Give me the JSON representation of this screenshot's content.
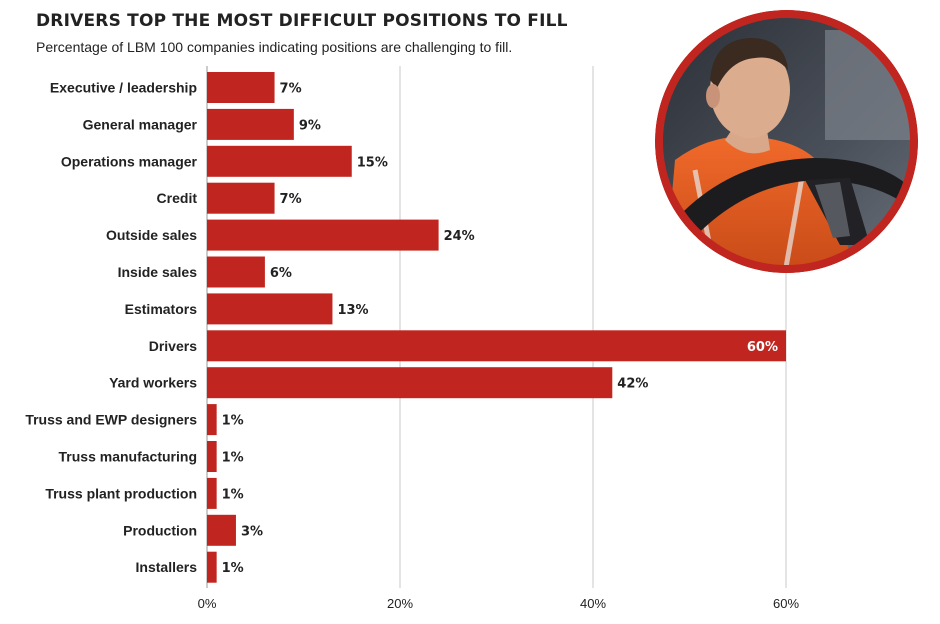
{
  "colors": {
    "accent": "#c0261f",
    "bar": "#c0261f",
    "text": "#222222",
    "grid": "#c8c8c8"
  },
  "header": {
    "title": "DRIVERS TOP THE MOST DIFFICULT POSITIONS TO FILL",
    "subtitle": "Percentage of LBM 100 companies indicating positions are challenging to fill."
  },
  "photo": {
    "icon": "truck-driver-photo-icon"
  },
  "chart_data": {
    "type": "bar",
    "orientation": "horizontal",
    "title": "DRIVERS TOP THE MOST DIFFICULT POSITIONS TO FILL",
    "subtitle": "Percentage of LBM 100 companies indicating positions are challenging to fill.",
    "xlabel": "",
    "ylabel": "",
    "categories": [
      "Executive / leadership",
      "General manager",
      "Operations manager",
      "Credit",
      "Outside sales",
      "Inside sales",
      "Estimators",
      "Drivers",
      "Yard workers",
      "Truss and EWP designers",
      "Truss manufacturing",
      "Truss plant production",
      "Production",
      "Installers"
    ],
    "values": [
      7,
      9,
      15,
      7,
      24,
      6,
      13,
      60,
      42,
      1,
      1,
      1,
      3,
      1
    ],
    "value_labels": [
      "7%",
      "9%",
      "15%",
      "7%",
      "24%",
      "6%",
      "13%",
      "60%",
      "42%",
      "1%",
      "1%",
      "1%",
      "3%",
      "1%"
    ],
    "xlim": [
      0,
      60
    ],
    "xticks": [
      0,
      20,
      40,
      60
    ],
    "xtick_labels": [
      "0%",
      "20%",
      "40%",
      "60%"
    ],
    "grid": true,
    "legend": "none"
  }
}
